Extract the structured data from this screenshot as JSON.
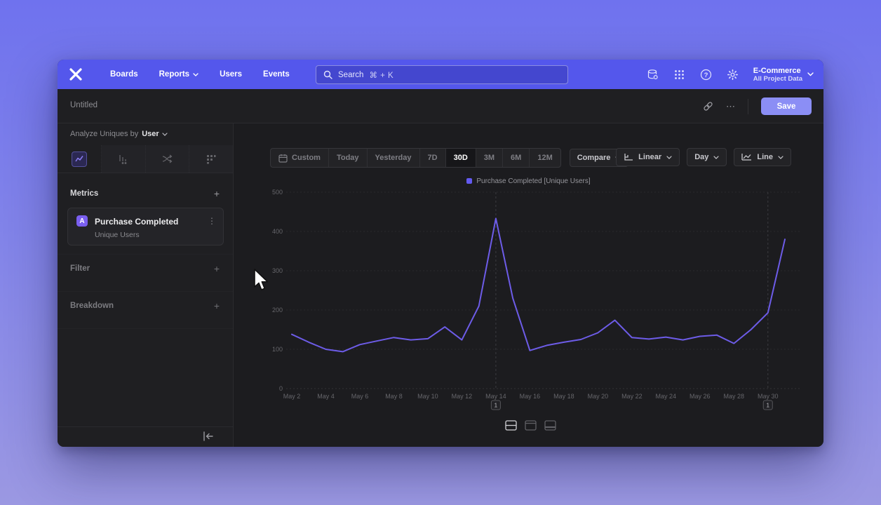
{
  "colors": {
    "nav_purple": "#5457ec",
    "accent_line": "#6d5ce8",
    "legend_swatch": "#635af0",
    "save_button": "#8b8ef5",
    "metric_badge": "#7a5ff0",
    "window_bg": "#1d1d20"
  },
  "nav": {
    "menu": [
      {
        "label": "Boards",
        "chevron": false
      },
      {
        "label": "Reports",
        "chevron": true
      },
      {
        "label": "Users",
        "chevron": false
      },
      {
        "label": "Events",
        "chevron": false
      }
    ],
    "search": {
      "label": "Search",
      "shortcut": "⌘ + K"
    },
    "project_name": "E-Commerce",
    "project_scope": "All Project Data"
  },
  "header": {
    "title": "Untitled",
    "more_icon": "⋯",
    "save_label": "Save"
  },
  "sidebar": {
    "analyze_prefix": "Analyze Uniques by",
    "analyze_value": "User",
    "metrics_label": "Metrics",
    "filter_label": "Filter",
    "breakdown_label": "Breakdown",
    "add_icon": "+",
    "metric_card": {
      "badge": "A",
      "title": "Purchase Completed",
      "subtitle": "Unique Users",
      "kebab_icon": "⋮"
    }
  },
  "toolbar": {
    "ranges": [
      "Custom",
      "Today",
      "Yesterday",
      "7D",
      "30D",
      "3M",
      "6M",
      "12M"
    ],
    "selected_range": "30D",
    "compare_label": "Compare",
    "scale_label": "Linear",
    "interval_label": "Day",
    "chart_type_label": "Line"
  },
  "chart_data": {
    "type": "line",
    "title": "",
    "legend": "Purchase Completed [Unique Users]",
    "legend_position": "top-center",
    "grid": "horizontal-dashed",
    "ylim": [
      0,
      500
    ],
    "yticks": [
      0,
      100,
      200,
      300,
      400,
      500
    ],
    "dates": [
      "May 2",
      "May 3",
      "May 4",
      "May 5",
      "May 6",
      "May 7",
      "May 8",
      "May 9",
      "May 10",
      "May 11",
      "May 12",
      "May 13",
      "May 14",
      "May 15",
      "May 16",
      "May 17",
      "May 18",
      "May 19",
      "May 20",
      "May 21",
      "May 22",
      "May 23",
      "May 24",
      "May 25",
      "May 26",
      "May 27",
      "May 28",
      "May 29",
      "May 30",
      "May 31"
    ],
    "x_tick_step": 2,
    "series": [
      {
        "name": "Purchase Completed [Unique Users]",
        "color": "#6d5ce8",
        "values": [
          138,
          118,
          100,
          94,
          112,
          121,
          130,
          124,
          127,
          157,
          124,
          210,
          433,
          230,
          97,
          110,
          118,
          125,
          142,
          174,
          130,
          126,
          131,
          124,
          133,
          136,
          115,
          150,
          193,
          380
        ]
      }
    ],
    "annotations": [
      {
        "index": 12,
        "label": "1"
      },
      {
        "index": 28,
        "label": "1"
      }
    ]
  }
}
